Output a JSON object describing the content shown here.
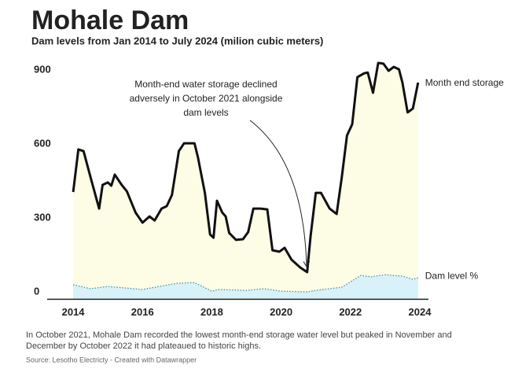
{
  "chart_data": {
    "type": "area",
    "title": "Mohale Dam",
    "subtitle": "Dam levels from Jan 2014 to July 2024 (milion cubic meters)",
    "annotation": [
      "Month-end water storage declined",
      "adversely in October 2021 alongside",
      "dam levels"
    ],
    "footnote": [
      "In October 2021, Mohale Dam recorded the lowest month-end storage water level but peaked in November and",
      "December by October 2022 it had plateaued to historic highs."
    ],
    "source": "Source: Lesotho Electricty - Created with Datawrapper",
    "xlim": [
      2013.25,
      2024.25
    ],
    "xticks": [
      2014,
      2016,
      2018,
      2020,
      2022,
      2024
    ],
    "ylim": [
      -30,
      950
    ],
    "yticks": [
      0,
      300,
      600,
      900
    ],
    "grid": false,
    "series": [
      {
        "name": "Month end storage",
        "color": "#111111",
        "fill": "#fdfde6",
        "x": [
          2014.0,
          2014.15,
          2014.3,
          2014.5,
          2014.75,
          2014.85,
          2015.0,
          2015.1,
          2015.2,
          2015.4,
          2015.55,
          2015.8,
          2016.0,
          2016.2,
          2016.35,
          2016.55,
          2016.7,
          2016.85,
          2017.05,
          2017.2,
          2017.5,
          2017.6,
          2017.8,
          2017.95,
          2018.05,
          2018.15,
          2018.3,
          2018.4,
          2018.5,
          2018.7,
          2018.9,
          2019.05,
          2019.2,
          2019.4,
          2019.6,
          2019.75,
          2019.95,
          2020.1,
          2020.3,
          2020.55,
          2020.75,
          2020.85,
          2021.0,
          2021.15,
          2021.4,
          2021.6,
          2021.75,
          2021.9,
          2022.05,
          2022.2,
          2022.4,
          2022.5,
          2022.65,
          2022.8,
          2022.95,
          2023.1,
          2023.25,
          2023.4,
          2023.5,
          2023.65,
          2023.8,
          2023.95
        ],
        "values": [
          405,
          578,
          571,
          466,
          338,
          434,
          444,
          431,
          476,
          434,
          408,
          322,
          281,
          306,
          290,
          338,
          348,
          393,
          571,
          603,
          603,
          546,
          402,
          233,
          220,
          370,
          322,
          306,
          239,
          211,
          214,
          243,
          338,
          338,
          335,
          169,
          163,
          179,
          131,
          99,
          80,
          227,
          402,
          402,
          338,
          316,
          466,
          635,
          680,
          871,
          887,
          890,
          808,
          929,
          926,
          897,
          913,
          903,
          849,
          728,
          744,
          849
        ]
      },
      {
        "name": "Dam level %",
        "color": "#3f94b0",
        "fill": "#d9f1f8",
        "x": [
          2014.0,
          2014.5,
          2015.0,
          2016.0,
          2017.0,
          2017.5,
          2018.0,
          2018.2,
          2019.0,
          2019.5,
          2020.0,
          2020.75,
          2021.0,
          2021.75,
          2022.0,
          2022.3,
          2022.6,
          2023.0,
          2023.5,
          2023.8,
          2023.95
        ],
        "values": [
          29,
          13,
          22,
          10,
          35,
          38,
          3,
          10,
          6,
          13,
          3,
          0,
          6,
          19,
          41,
          67,
          61,
          70,
          64,
          51,
          57
        ]
      }
    ]
  }
}
